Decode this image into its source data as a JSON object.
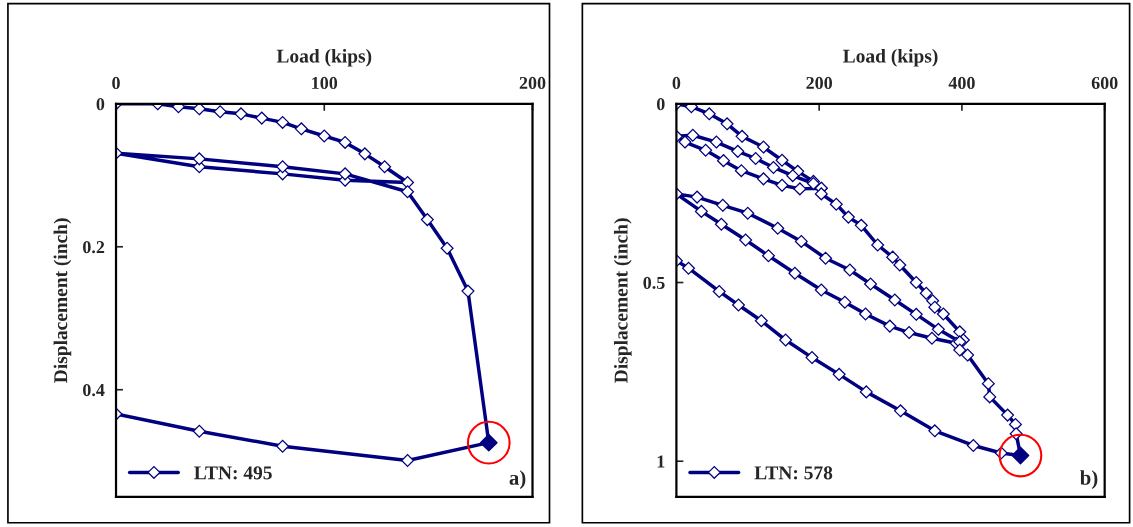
{
  "chart_data": [
    {
      "type": "line",
      "xlabel": "Load (kips)",
      "ylabel": "Displacement (inch)",
      "xlim": [
        0,
        200
      ],
      "xticks": [
        0,
        100,
        200
      ],
      "ylim": [
        0.55,
        0
      ],
      "yticks": [
        0,
        0.2,
        0.4
      ],
      "grid": false,
      "legend": "bottom left",
      "marker": "diamond",
      "line_style": "solid",
      "annotations": [
        "a)"
      ],
      "series": [
        {
          "name": "LTN: 495",
          "color": "#000080",
          "x": [
            0,
            20,
            30,
            40,
            50,
            60,
            70,
            80,
            89,
            100,
            110,
            119.5,
            129,
            140,
            110,
            80,
            40,
            0,
            40,
            80,
            110,
            140,
            149.5,
            159,
            169,
            179,
            140,
            80,
            40,
            0
          ],
          "values": [
            0,
            0,
            0.004,
            0.007,
            0.011,
            0.014,
            0.02,
            0.026,
            0.035,
            0.045,
            0.054,
            0.07,
            0.088,
            0.11,
            0.107,
            0.098,
            0.088,
            0.069,
            0.077,
            0.088,
            0.098,
            0.123,
            0.162,
            0.202,
            0.262,
            0.474,
            0.499,
            0.479,
            0.458,
            0.434
          ]
        },
        {
          "type": "scatter",
          "marker": "diamond",
          "color": "#000080",
          "x": [
            179
          ],
          "values": [
            0.474
          ]
        },
        {
          "type": "scatter",
          "marker": "circle",
          "color": "#ff0000",
          "x": [
            179
          ],
          "values": [
            0.474
          ]
        }
      ]
    },
    {
      "type": "line",
      "xlabel": "Load (kips)",
      "ylabel": "Displacement (inch)",
      "xlim": [
        0,
        600
      ],
      "xticks": [
        0,
        200,
        400,
        600
      ],
      "ylim": [
        1.1,
        0
      ],
      "yticks": [
        0,
        0.5,
        1
      ],
      "grid": false,
      "legend": "bottom left",
      "marker": "diamond",
      "line_style": "solid",
      "annotations": [
        "b)"
      ],
      "series": [
        {
          "name": "LTN: 578",
          "color": "#000080",
          "x": [
            0,
            21,
            46,
            71,
            92,
            122,
            148,
            170,
            192,
            203,
            173,
            148,
            122,
            91,
            66,
            41,
            12,
            0,
            23,
            56,
            86,
            111,
            136,
            163,
            192,
            203,
            203,
            224,
            241,
            259,
            282,
            303,
            313,
            336,
            350,
            359,
            362,
            374,
            397,
            402,
            392,
            358,
            326,
            299,
            265,
            236,
            203,
            166,
            129,
            97,
            63,
            35,
            0,
            29,
            65,
            100,
            142,
            175,
            209,
            243,
            272,
            306,
            336,
            367,
            397,
            397,
            408,
            437,
            439,
            464,
            475,
            476,
            482,
            455,
            416,
            362,
            314,
            266,
            228,
            190,
            153,
            119,
            87,
            60,
            17,
            0
          ],
          "values": [
            0,
            0.008,
            0.028,
            0.056,
            0.091,
            0.121,
            0.158,
            0.189,
            0.217,
            0.236,
            0.238,
            0.228,
            0.21,
            0.187,
            0.159,
            0.13,
            0.107,
            0.091,
            0.088,
            0.107,
            0.133,
            0.153,
            0.178,
            0.201,
            0.223,
            0.236,
            0.252,
            0.281,
            0.317,
            0.34,
            0.395,
            0.429,
            0.451,
            0.5,
            0.53,
            0.551,
            0.569,
            0.588,
            0.638,
            0.661,
            0.67,
            0.656,
            0.64,
            0.622,
            0.588,
            0.555,
            0.521,
            0.474,
            0.425,
            0.381,
            0.337,
            0.301,
            0.252,
            0.261,
            0.284,
            0.306,
            0.348,
            0.385,
            0.432,
            0.465,
            0.504,
            0.549,
            0.589,
            0.631,
            0.666,
            0.689,
            0.703,
            0.783,
            0.82,
            0.871,
            0.897,
            0.923,
            0.984,
            0.977,
            0.956,
            0.915,
            0.859,
            0.806,
            0.757,
            0.71,
            0.661,
            0.607,
            0.563,
            0.525,
            0.46,
            0.439
          ]
        },
        {
          "type": "scatter",
          "marker": "diamond",
          "color": "#000080",
          "x": [
            482
          ],
          "values": [
            0.984
          ]
        },
        {
          "type": "scatter",
          "marker": "circle",
          "color": "#ff0000",
          "x": [
            482
          ],
          "values": [
            0.984
          ]
        }
      ]
    }
  ]
}
